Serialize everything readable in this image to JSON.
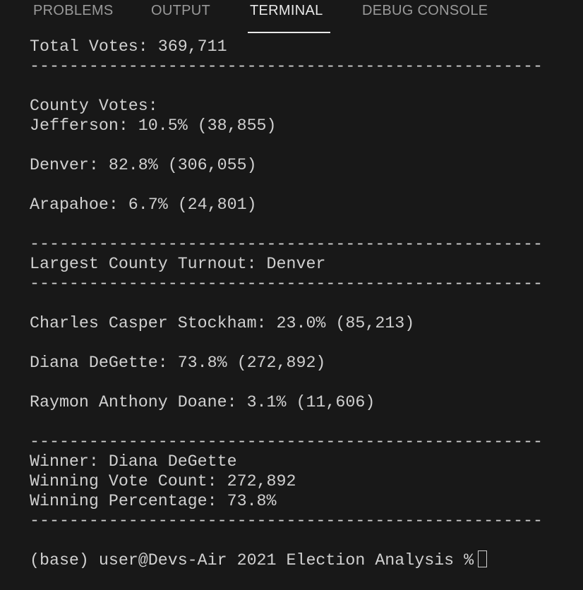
{
  "tabs": [
    "PROBLEMS",
    "OUTPUT",
    "TERMINAL",
    "DEBUG CONSOLE"
  ],
  "active_tab": 2,
  "terminal": {
    "groups": [
      [
        "Total Votes: 369,711",
        "----------------------------------------------------"
      ],
      [
        "County Votes:",
        "Jefferson: 10.5% (38,855)"
      ],
      [
        "Denver: 82.8% (306,055)"
      ],
      [
        "Arapahoe: 6.7% (24,801)"
      ],
      [
        "----------------------------------------------------",
        "Largest County Turnout: Denver",
        "----------------------------------------------------"
      ],
      [
        "Charles Casper Stockham: 23.0% (85,213)"
      ],
      [
        "Diana DeGette: 73.8% (272,892)"
      ],
      [
        "Raymon Anthony Doane: 3.1% (11,606)"
      ],
      [
        "----------------------------------------------------",
        "Winner: Diana DeGette",
        "Winning Vote Count: 272,892",
        "Winning Percentage: 73.8%",
        "----------------------------------------------------"
      ],
      [
        "(base) user@Devs-Air 2021 Election Analysis %"
      ]
    ]
  }
}
